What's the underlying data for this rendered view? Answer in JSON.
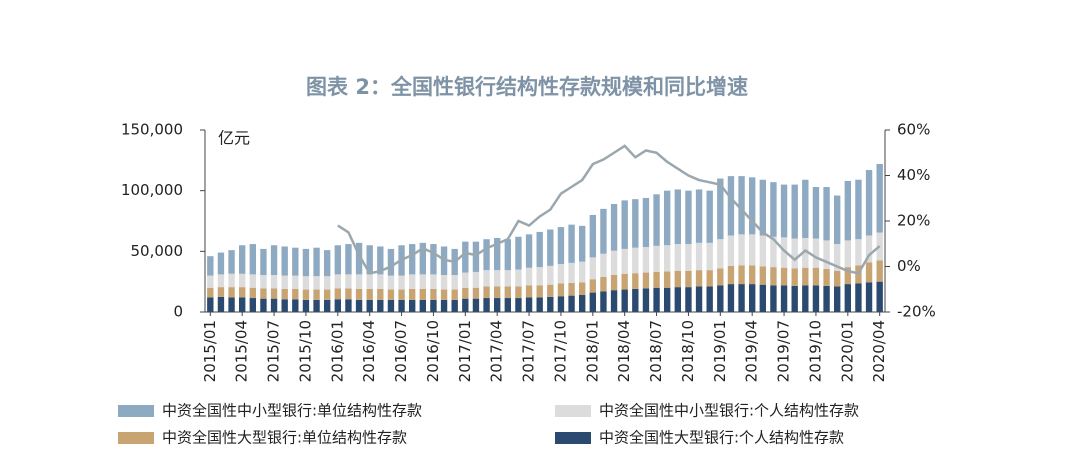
{
  "chart_data": {
    "type": "bar",
    "title": "图表 2：全国性银行结构性存款规模和同比增速",
    "y_label": "亿元",
    "categories": [
      "2015/01",
      null,
      null,
      "2015/04",
      null,
      null,
      "2015/07",
      null,
      null,
      "2015/10",
      null,
      null,
      "2016/01",
      null,
      null,
      "2016/04",
      null,
      null,
      "2016/07",
      null,
      null,
      "2016/10",
      null,
      null,
      "2017/01",
      null,
      null,
      "2017/04",
      null,
      null,
      "2017/07",
      null,
      null,
      "2017/10",
      null,
      null,
      "2018/01",
      null,
      null,
      "2018/04",
      null,
      null,
      "2018/07",
      null,
      null,
      "2018/10",
      null,
      null,
      "2019/01",
      null,
      null,
      "2019/04",
      null,
      null,
      "2019/07",
      null,
      null,
      "2019/10",
      null,
      null,
      "2020/01",
      null,
      null,
      "2020/04"
    ],
    "stacked": true,
    "series": [
      {
        "name": "中资全国性中小型银行:单位结构性存款",
        "color": "#8eaac2",
        "values": [
          16000,
          18000,
          19500,
          23500,
          25000,
          21500,
          24500,
          24000,
          23000,
          22500,
          23500,
          21500,
          24000,
          25000,
          26000,
          24000,
          23000,
          22000,
          25000,
          25000,
          26000,
          25000,
          23500,
          21500,
          25500,
          25000,
          25500,
          26500,
          25500,
          27000,
          27500,
          29000,
          30000,
          30500,
          31500,
          29500,
          35000,
          37000,
          38500,
          40000,
          40000,
          40500,
          42500,
          45000,
          45000,
          44000,
          44000,
          43000,
          50000,
          49000,
          48000,
          47000,
          46000,
          45000,
          43500,
          44500,
          48000,
          42500,
          44000,
          40000,
          49000,
          49000,
          54000,
          56500
        ]
      },
      {
        "name": "中资全国性中小型银行:个人结构性存款",
        "color": "#dcdcdc",
        "values": [
          10000,
          10500,
          11000,
          11000,
          11000,
          11000,
          11000,
          11000,
          11000,
          11000,
          11000,
          11000,
          11500,
          11500,
          12000,
          12000,
          12000,
          11500,
          11500,
          12000,
          12000,
          12000,
          12000,
          12000,
          12500,
          13000,
          13500,
          13500,
          13500,
          14000,
          14500,
          15000,
          15500,
          16000,
          16500,
          17000,
          18000,
          19000,
          20000,
          20500,
          21000,
          21000,
          21500,
          21500,
          22000,
          22000,
          22500,
          22500,
          24000,
          25000,
          25500,
          25500,
          25500,
          25000,
          25000,
          24500,
          24500,
          24000,
          23500,
          22000,
          22000,
          21500,
          22000,
          23000
        ]
      },
      {
        "name": "中资全国性大型银行:单位结构性存款",
        "color": "#c9a473",
        "values": [
          8000,
          8000,
          8500,
          8500,
          8500,
          8500,
          8500,
          8500,
          8500,
          8500,
          8500,
          8500,
          9000,
          9000,
          9000,
          9000,
          9000,
          8500,
          8500,
          9000,
          9000,
          9000,
          8500,
          8500,
          9000,
          9000,
          9500,
          9500,
          9500,
          9500,
          10000,
          10000,
          10000,
          10500,
          10500,
          10500,
          11000,
          12000,
          12500,
          13000,
          13000,
          13000,
          13000,
          13500,
          13500,
          13500,
          13500,
          13500,
          14000,
          15000,
          15500,
          15500,
          15000,
          15000,
          14500,
          14500,
          14500,
          14500,
          14000,
          13000,
          14000,
          15000,
          16500,
          17500
        ]
      },
      {
        "name": "中资全国性大型银行:个人结构性存款",
        "color": "#2b4a6f",
        "values": [
          12000,
          12500,
          12000,
          12000,
          11500,
          11000,
          11000,
          10500,
          10500,
          10000,
          10000,
          10000,
          10500,
          10500,
          10000,
          10000,
          10000,
          10000,
          10000,
          10000,
          10000,
          10000,
          10000,
          10000,
          11000,
          11000,
          11500,
          11500,
          11500,
          11500,
          12000,
          12000,
          12500,
          13000,
          13500,
          14000,
          16000,
          17000,
          18000,
          18500,
          19000,
          19500,
          20000,
          20000,
          20500,
          20500,
          21000,
          21000,
          22000,
          23000,
          23000,
          23000,
          22500,
          22000,
          22000,
          21500,
          22000,
          22000,
          21500,
          21000,
          23000,
          23500,
          24500,
          25000
        ]
      },
      {
        "type": "line",
        "axis": "y2",
        "color": "#9ba7ae",
        "values": [
          null,
          null,
          null,
          null,
          null,
          null,
          null,
          null,
          null,
          null,
          null,
          null,
          18,
          15,
          5,
          -3,
          -2,
          0,
          3,
          5,
          8,
          6,
          3,
          2,
          6,
          5,
          8,
          10,
          12,
          20,
          18,
          22,
          25,
          32,
          35,
          38,
          45,
          47,
          50,
          53,
          48,
          51,
          50,
          46,
          43,
          40,
          38,
          37,
          36,
          30,
          25,
          20,
          15,
          12,
          7,
          3,
          7,
          4,
          2,
          0,
          -2,
          -3,
          5,
          9
        ]
      }
    ],
    "ylim": [
      0,
      150000
    ],
    "yticks": [
      {
        "value": 0,
        "label": "0"
      },
      {
        "value": 50000,
        "label": "50,000"
      },
      {
        "value": 100000,
        "label": "100,000"
      },
      {
        "value": 150000,
        "label": "150,000"
      }
    ],
    "y2lim": [
      -20,
      60
    ],
    "y2ticks": [
      {
        "value": -20,
        "label": "-20%"
      },
      {
        "value": 0,
        "label": "0%"
      },
      {
        "value": 20,
        "label": "20%"
      },
      {
        "value": 40,
        "label": "40%"
      },
      {
        "value": 60,
        "label": "60%"
      }
    ]
  }
}
